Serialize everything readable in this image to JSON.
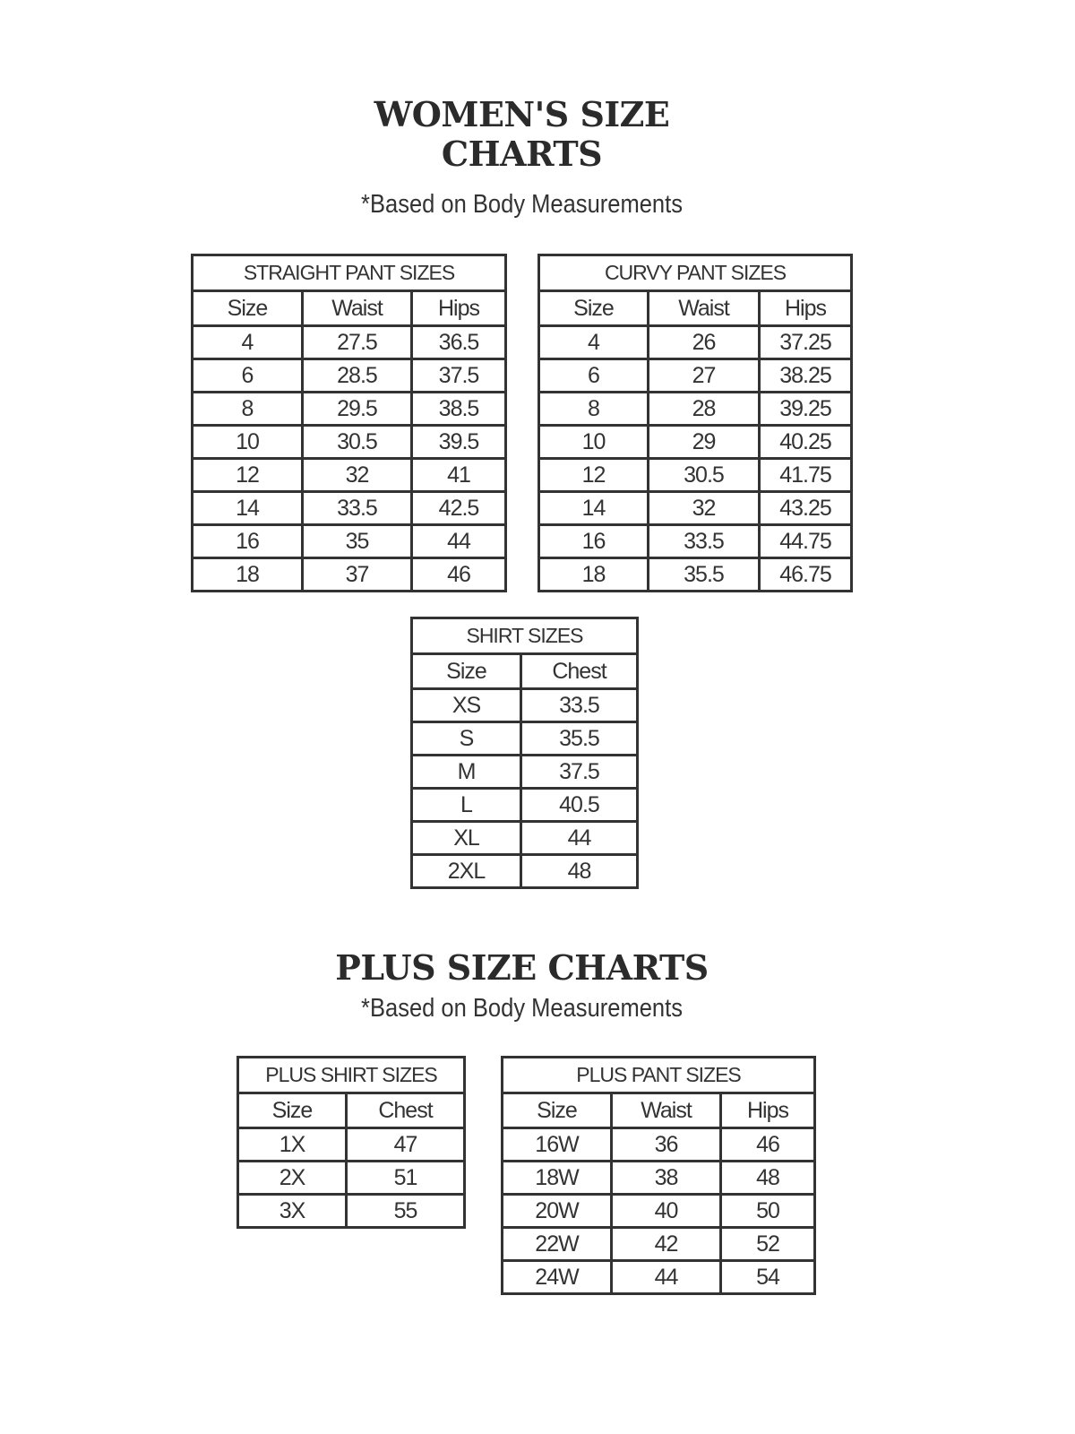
{
  "womens": {
    "title_line1": "WOMEN'S SIZE",
    "title_line2": "CHARTS",
    "subtitle": "*Based on Body Measurements"
  },
  "plus": {
    "title": "PLUS SIZE CHARTS",
    "subtitle": "*Based on Body Measurements"
  },
  "tables": {
    "straight": {
      "title": "STRAIGHT PANT SIZES",
      "columns": [
        "Size",
        "Waist",
        "Hips"
      ],
      "rows": [
        [
          "4",
          "27.5",
          "36.5"
        ],
        [
          "6",
          "28.5",
          "37.5"
        ],
        [
          "8",
          "29.5",
          "38.5"
        ],
        [
          "10",
          "30.5",
          "39.5"
        ],
        [
          "12",
          "32",
          "41"
        ],
        [
          "14",
          "33.5",
          "42.5"
        ],
        [
          "16",
          "35",
          "44"
        ],
        [
          "18",
          "37",
          "46"
        ]
      ]
    },
    "curvy": {
      "title": "CURVY PANT SIZES",
      "columns": [
        "Size",
        "Waist",
        "Hips"
      ],
      "rows": [
        [
          "4",
          "26",
          "37.25"
        ],
        [
          "6",
          "27",
          "38.25"
        ],
        [
          "8",
          "28",
          "39.25"
        ],
        [
          "10",
          "29",
          "40.25"
        ],
        [
          "12",
          "30.5",
          "41.75"
        ],
        [
          "14",
          "32",
          "43.25"
        ],
        [
          "16",
          "33.5",
          "44.75"
        ],
        [
          "18",
          "35.5",
          "46.75"
        ]
      ]
    },
    "shirt": {
      "title": "SHIRT SIZES",
      "columns": [
        "Size",
        "Chest"
      ],
      "rows": [
        [
          "XS",
          "33.5"
        ],
        [
          "S",
          "35.5"
        ],
        [
          "M",
          "37.5"
        ],
        [
          "L",
          "40.5"
        ],
        [
          "XL",
          "44"
        ],
        [
          "2XL",
          "48"
        ]
      ]
    },
    "plus_shirt": {
      "title": "PLUS SHIRT SIZES",
      "columns": [
        "Size",
        "Chest"
      ],
      "rows": [
        [
          "1X",
          "47"
        ],
        [
          "2X",
          "51"
        ],
        [
          "3X",
          "55"
        ]
      ]
    },
    "plus_pant": {
      "title": "PLUS PANT SIZES",
      "columns": [
        "Size",
        "Waist",
        "Hips"
      ],
      "rows": [
        [
          "16W",
          "36",
          "46"
        ],
        [
          "18W",
          "38",
          "48"
        ],
        [
          "20W",
          "40",
          "50"
        ],
        [
          "22W",
          "42",
          "52"
        ],
        [
          "24W",
          "44",
          "54"
        ]
      ]
    }
  }
}
